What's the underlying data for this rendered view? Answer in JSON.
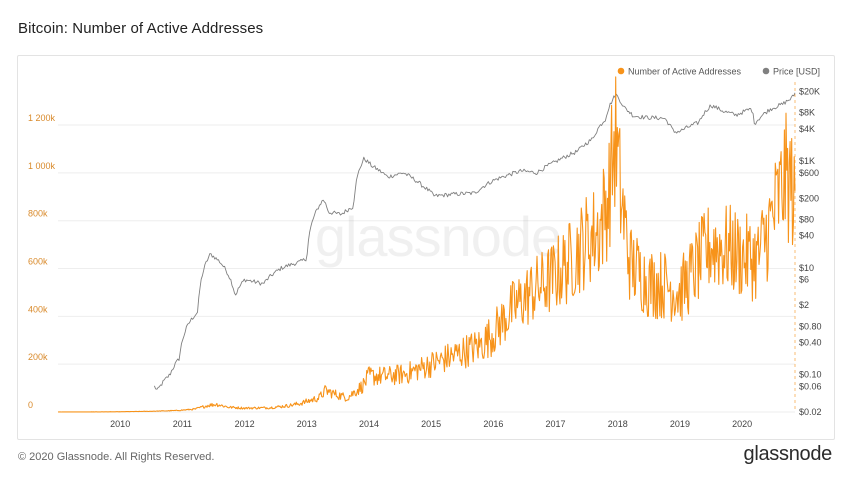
{
  "page": {
    "title": "Bitcoin: Number of Active Addresses",
    "copyright": "© 2020 Glassnode. All Rights Reserved.",
    "brand": "glassnode",
    "watermark": "glassnode"
  },
  "colors": {
    "addresses": "#f7931a",
    "price": "#808080",
    "grid": "#eeeeee",
    "left_axis_text": "#d98a2b",
    "right_axis_text": "#444444",
    "x_axis_text": "#444444"
  },
  "chart_data": {
    "type": "line",
    "title": "Bitcoin: Number of Active Addresses",
    "x_range": [
      2009.0,
      2020.85
    ],
    "x_ticks": [
      "2010",
      "2011",
      "2012",
      "2013",
      "2014",
      "2015",
      "2016",
      "2017",
      "2018",
      "2019",
      "2020"
    ],
    "left_axis": {
      "range": [
        0,
        1380000
      ],
      "ticks": [
        {
          "v": 0,
          "label": "0"
        },
        {
          "v": 200000,
          "label": "200k"
        },
        {
          "v": 400000,
          "label": "400k"
        },
        {
          "v": 600000,
          "label": "600k"
        },
        {
          "v": 800000,
          "label": "800k"
        },
        {
          "v": 1000000,
          "label": "1 000k"
        },
        {
          "v": 1200000,
          "label": "1 200k"
        }
      ]
    },
    "right_axis": {
      "scale": "log",
      "range": [
        0.02,
        30000
      ],
      "ticks": [
        {
          "v": 20000,
          "label": "$20K"
        },
        {
          "v": 8000,
          "label": "$8K"
        },
        {
          "v": 4000,
          "label": "$4K"
        },
        {
          "v": 1000,
          "label": "$1K"
        },
        {
          "v": 600,
          "label": "$600"
        },
        {
          "v": 200,
          "label": "$200"
        },
        {
          "v": 80,
          "label": "$80"
        },
        {
          "v": 40,
          "label": "$40"
        },
        {
          "v": 10,
          "label": "$10"
        },
        {
          "v": 6,
          "label": "$6"
        },
        {
          "v": 2,
          "label": "$2"
        },
        {
          "v": 0.8,
          "label": "$0.80"
        },
        {
          "v": 0.4,
          "label": "$0.40"
        },
        {
          "v": 0.1,
          "label": "$0.10"
        },
        {
          "v": 0.06,
          "label": "$0.06"
        },
        {
          "v": 0.02,
          "label": "$0.02"
        }
      ]
    },
    "grid": "horizontal",
    "legend_position": "top-right",
    "series": [
      {
        "name": "Number of Active Addresses",
        "axis": "left",
        "noise": 0.28,
        "points": [
          [
            2009.0,
            200
          ],
          [
            2009.5,
            500
          ],
          [
            2010.0,
            1000
          ],
          [
            2010.5,
            3000
          ],
          [
            2010.9,
            6000
          ],
          [
            2011.2,
            12000
          ],
          [
            2011.42,
            28000
          ],
          [
            2011.55,
            32000
          ],
          [
            2011.75,
            20000
          ],
          [
            2012.0,
            16000
          ],
          [
            2012.4,
            18000
          ],
          [
            2012.7,
            26000
          ],
          [
            2012.9,
            36000
          ],
          [
            2013.2,
            60000
          ],
          [
            2013.3,
            90000
          ],
          [
            2013.45,
            75000
          ],
          [
            2013.65,
            60000
          ],
          [
            2013.9,
            110000
          ],
          [
            2014.0,
            150000
          ],
          [
            2014.3,
            150000
          ],
          [
            2014.6,
            160000
          ],
          [
            2015.0,
            200000
          ],
          [
            2015.4,
            240000
          ],
          [
            2015.8,
            280000
          ],
          [
            2016.0,
            330000
          ],
          [
            2016.3,
            430000
          ],
          [
            2016.6,
            500000
          ],
          [
            2016.9,
            550000
          ],
          [
            2017.2,
            620000
          ],
          [
            2017.5,
            720000
          ],
          [
            2017.7,
            760000
          ],
          [
            2017.85,
            900000
          ],
          [
            2017.96,
            1150000
          ],
          [
            2018.05,
            900000
          ],
          [
            2018.2,
            620000
          ],
          [
            2018.5,
            540000
          ],
          [
            2018.8,
            530000
          ],
          [
            2019.0,
            500000
          ],
          [
            2019.3,
            620000
          ],
          [
            2019.5,
            700000
          ],
          [
            2019.8,
            680000
          ],
          [
            2020.0,
            650000
          ],
          [
            2020.25,
            640000
          ],
          [
            2020.5,
            820000
          ],
          [
            2020.7,
            980000
          ],
          [
            2020.8,
            950000
          ],
          [
            2020.85,
            820000
          ]
        ]
      },
      {
        "name": "Price [USD]",
        "axis": "right",
        "scale": "log",
        "noise": 0.04,
        "points": [
          [
            2010.55,
            0.06
          ],
          [
            2010.6,
            0.05
          ],
          [
            2010.8,
            0.1
          ],
          [
            2010.95,
            0.2
          ],
          [
            2011.1,
            0.9
          ],
          [
            2011.25,
            1.5
          ],
          [
            2011.45,
            18
          ],
          [
            2011.6,
            13
          ],
          [
            2011.85,
            3
          ],
          [
            2012.0,
            6
          ],
          [
            2012.3,
            5
          ],
          [
            2012.6,
            10
          ],
          [
            2012.9,
            13
          ],
          [
            2013.0,
            15
          ],
          [
            2013.27,
            190
          ],
          [
            2013.35,
            110
          ],
          [
            2013.55,
            100
          ],
          [
            2013.75,
            140
          ],
          [
            2013.92,
            1100
          ],
          [
            2014.05,
            800
          ],
          [
            2014.3,
            500
          ],
          [
            2014.55,
            600
          ],
          [
            2014.85,
            350
          ],
          [
            2015.05,
            220
          ],
          [
            2015.4,
            240
          ],
          [
            2015.7,
            250
          ],
          [
            2016.0,
            430
          ],
          [
            2016.45,
            650
          ],
          [
            2016.7,
            600
          ],
          [
            2017.0,
            960
          ],
          [
            2017.35,
            1500
          ],
          [
            2017.6,
            2600
          ],
          [
            2017.8,
            6000
          ],
          [
            2017.97,
            17500
          ],
          [
            2018.1,
            10000
          ],
          [
            2018.25,
            7000
          ],
          [
            2018.45,
            6500
          ],
          [
            2018.75,
            6300
          ],
          [
            2018.9,
            3500
          ],
          [
            2019.0,
            3600
          ],
          [
            2019.3,
            5200
          ],
          [
            2019.5,
            11000
          ],
          [
            2019.7,
            8500
          ],
          [
            2019.9,
            7200
          ],
          [
            2020.15,
            9500
          ],
          [
            2020.2,
            5000
          ],
          [
            2020.45,
            9300
          ],
          [
            2020.65,
            11500
          ],
          [
            2020.8,
            15000
          ],
          [
            2020.85,
            18500
          ]
        ]
      }
    ]
  }
}
